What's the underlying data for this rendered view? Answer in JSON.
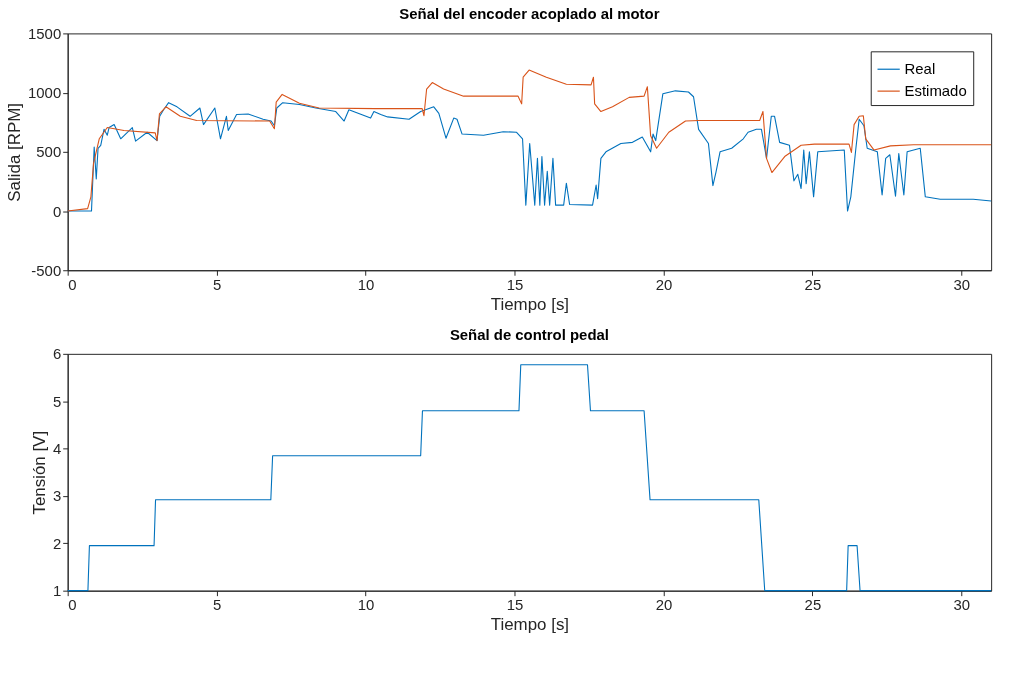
{
  "chart_data": [
    {
      "type": "line",
      "title": "Señal del encoder acoplado al motor",
      "xlabel": "Tiempo [s]",
      "ylabel": "Salida [RPM]",
      "xlim": [
        0,
        31
      ],
      "xticks": [
        0,
        5,
        10,
        15,
        20,
        25,
        30
      ],
      "ylim": [
        -500,
        1500
      ],
      "yticks": [
        -500,
        0,
        500,
        1000,
        1500
      ],
      "legend": "top right",
      "grid": false,
      "series": [
        {
          "name": "Real",
          "color": "#0072bd",
          "x": [
            0,
            0.8,
            0.89,
            0.96,
            1.02,
            1.11,
            1.22,
            1.33,
            1.39,
            1.56,
            1.78,
            2.17,
            2.28,
            2.67,
            3.0,
            3.09,
            3.22,
            3.39,
            3.67,
            4.11,
            4.44,
            4.56,
            4.94,
            5.13,
            5.33,
            5.39,
            5.67,
            6.06,
            6.56,
            6.83,
            6.94,
            7.02,
            7.22,
            7.78,
            8.33,
            9.0,
            9.28,
            9.44,
            10.17,
            10.28,
            10.51,
            10.74,
            11.46,
            11.85,
            12.29,
            12.46,
            12.7,
            12.96,
            13.07,
            13.24,
            13.96,
            14.62,
            15.07,
            15.27,
            15.38,
            15.51,
            15.68,
            15.77,
            15.85,
            15.92,
            16.01,
            16.1,
            16.18,
            16.29,
            16.38,
            16.65,
            16.74,
            16.85,
            17.62,
            17.74,
            17.79,
            17.9,
            18.07,
            18.57,
            18.96,
            19.29,
            19.57,
            19.65,
            19.74,
            19.98,
            20.4,
            20.84,
            21.01,
            21.18,
            21.51,
            21.66,
            21.76,
            21.9,
            22.29,
            22.68,
            22.84,
            23.12,
            23.29,
            23.46,
            23.62,
            23.73,
            23.9,
            24.23,
            24.38,
            24.51,
            24.62,
            24.71,
            24.79,
            24.9,
            25.04,
            25.18,
            26.07,
            26.18,
            26.29,
            26.46,
            26.57,
            26.73,
            26.84,
            27.18,
            27.34,
            27.46,
            27.6,
            27.79,
            27.9,
            28.07,
            28.18,
            28.62,
            28.79,
            29.29,
            30.4,
            31.0
          ],
          "values": [
            0,
            0,
            540,
            270,
            530,
            555,
            690,
            640,
            705,
            730,
            610,
            705,
            590,
            665,
            595,
            800,
            855,
            915,
            880,
            800,
            870,
            730,
            870,
            610,
            800,
            680,
            815,
            820,
            775,
            760,
            720,
            870,
            915,
            900,
            870,
            840,
            760,
            855,
            785,
            840,
            815,
            795,
            775,
            840,
            880,
            825,
            615,
            785,
            775,
            650,
            640,
            670,
            665,
            610,
            50,
            570,
            50,
            445,
            50,
            460,
            50,
            335,
            50,
            445,
            50,
            50,
            235,
            55,
            50,
            220,
            105,
            445,
            500,
            570,
            580,
            625,
            500,
            650,
            595,
            990,
            1015,
            1005,
            965,
            690,
            570,
            215,
            325,
            500,
            530,
            610,
            665,
            690,
            690,
            445,
            800,
            800,
            580,
            555,
            255,
            310,
            190,
            515,
            230,
            500,
            120,
            500,
            515,
            0,
            120,
            530,
            775,
            720,
            530,
            500,
            135,
            445,
            475,
            125,
            485,
            135,
            500,
            530,
            120,
            100,
            100,
            85
          ]
        },
        {
          "name": "Estimado",
          "color": "#d95319",
          "x": [
            0,
            0.67,
            0.78,
            0.87,
            1.06,
            1.33,
            1.89,
            2.94,
            3.0,
            3.08,
            3.3,
            3.78,
            4.33,
            6.78,
            6.94,
            7.0,
            7.2,
            7.78,
            8.44,
            10.33,
            11.9,
            11.96,
            12.05,
            12.24,
            12.62,
            13.29,
            15.12,
            15.24,
            15.29,
            15.49,
            16.07,
            16.74,
            17.57,
            17.65,
            17.69,
            17.9,
            18.29,
            18.85,
            19.35,
            19.46,
            19.57,
            19.77,
            20.18,
            20.74,
            21.2,
            23.23,
            23.34,
            23.46,
            23.64,
            24.07,
            24.62,
            25.07,
            26.23,
            26.31,
            26.4,
            26.57,
            26.71,
            26.79,
            27.07,
            27.62,
            28.4,
            31.0
          ],
          "values": [
            0,
            20,
            120,
            405,
            610,
            705,
            680,
            660,
            595,
            820,
            880,
            800,
            765,
            760,
            695,
            920,
            985,
            910,
            870,
            865,
            865,
            805,
            1030,
            1085,
            1030,
            970,
            970,
            905,
            1130,
            1190,
            1130,
            1070,
            1065,
            1130,
            905,
            840,
            880,
            960,
            970,
            1050,
            635,
            530,
            665,
            760,
            765,
            765,
            840,
            445,
            325,
            460,
            555,
            565,
            565,
            495,
            730,
            800,
            805,
            610,
            515,
            550,
            560,
            560
          ]
        }
      ]
    },
    {
      "type": "line",
      "title": "Señal de control pedal",
      "xlabel": "Tiempo [s]",
      "ylabel": "Tensión [V]",
      "xlim": [
        0,
        31
      ],
      "xticks": [
        0,
        5,
        10,
        15,
        20,
        25,
        30
      ],
      "ylim": [
        1,
        6
      ],
      "yticks": [
        1,
        2,
        3,
        4,
        5,
        6
      ],
      "grid": false,
      "series": [
        {
          "color": "#0072bd",
          "x": [
            0,
            0.68,
            0.73,
            2.9,
            2.95,
            6.82,
            6.88,
            11.85,
            11.91,
            15.15,
            15.21,
            17.45,
            17.55,
            19.35,
            19.55,
            23.2,
            23.4,
            26.15,
            26.2,
            26.5,
            26.6,
            31.0
          ],
          "values": [
            1,
            1,
            1.95,
            1.95,
            2.92,
            2.92,
            3.85,
            3.85,
            4.8,
            4.8,
            5.77,
            5.77,
            4.8,
            4.8,
            2.92,
            2.92,
            1,
            1,
            1.95,
            1.95,
            1,
            1
          ]
        }
      ]
    }
  ]
}
